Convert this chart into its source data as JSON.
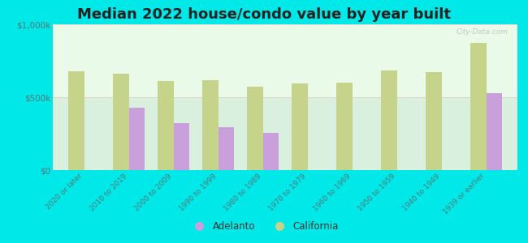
{
  "title": "Median 2022 house/condo value by year built",
  "categories": [
    "2020 or later",
    "2010 to 2019",
    "2000 to 2009",
    "1990 to 1999",
    "1980 to 1989",
    "1970 to 1979",
    "1960 to 1969",
    "1950 to 1959",
    "1940 to 1949",
    "1939 or earlier"
  ],
  "adelanto": [
    null,
    430000,
    320000,
    295000,
    255000,
    null,
    null,
    null,
    null,
    530000
  ],
  "california": [
    680000,
    660000,
    610000,
    615000,
    570000,
    595000,
    600000,
    685000,
    670000,
    870000
  ],
  "adelanto_color": "#c9a0dc",
  "california_color": "#c5d48a",
  "plot_bg_top": "#e8f5e0",
  "plot_bg_bottom": "#f5fff5",
  "cyan_bg": "#00e8e8",
  "ylim": [
    0,
    1000000
  ],
  "ytick_labels": [
    "$0",
    "$500k",
    "$1,000k"
  ],
  "bar_width": 0.35,
  "title_fontsize": 13,
  "legend_labels": [
    "Adelanto",
    "California"
  ],
  "watermark": "City-Data.com"
}
